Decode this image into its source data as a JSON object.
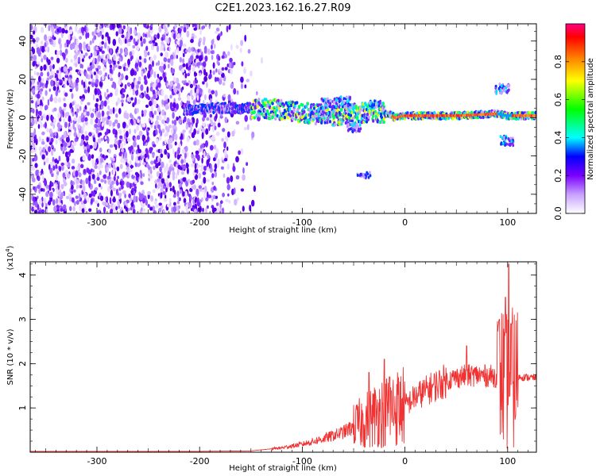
{
  "chart_data": [
    {
      "type": "heatmap",
      "title": "C2E1.2023.162.16.27.R09",
      "xlabel": "Height of straight line (km)",
      "ylabel": "Frequency (Hz)",
      "xlim": [
        -365,
        128
      ],
      "ylim": [
        -50,
        49
      ],
      "xticks": [
        -300,
        -200,
        -100,
        0,
        100
      ],
      "yticks": [
        -40,
        -20,
        0,
        20,
        40
      ],
      "colorbar": {
        "label": "Normalized spectral amplitude",
        "range": [
          0,
          1
        ],
        "ticks": [
          "0.0",
          "0.2",
          "0.4",
          "0.6",
          "0.8"
        ]
      },
      "features": {
        "noise_region_x": [
          -365,
          -150
        ],
        "central_line_points": [
          [
            -215,
            4
          ],
          [
            -180,
            5
          ],
          [
            -150,
            5
          ],
          [
            -120,
            4
          ],
          [
            -90,
            2
          ],
          [
            -70,
            1
          ],
          [
            -50,
            2
          ],
          [
            -30,
            3
          ],
          [
            -15,
            2
          ],
          [
            -10,
            0
          ],
          [
            0,
            1
          ],
          [
            50,
            1
          ],
          [
            90,
            2
          ],
          [
            100,
            1
          ],
          [
            128,
            1
          ]
        ],
        "bright_segment_x": [
          -12,
          90
        ]
      }
    },
    {
      "type": "line",
      "xlabel": "Height of straight line (km)",
      "ylabel": "SNR (10 * v/v)",
      "ylabel_multiplier": "(x10",
      "ylabel_multiplier_exp": "4",
      "ylabel_multiplier_close": ")",
      "xlim": [
        -365,
        128
      ],
      "ylim": [
        0,
        4.3
      ],
      "xticks": [
        -300,
        -200,
        -100,
        0,
        100
      ],
      "yticks": [
        1,
        2,
        3,
        4
      ],
      "color": "#f03232",
      "envelope": [
        [
          -365,
          0.02
        ],
        [
          -200,
          0.02
        ],
        [
          -150,
          0.03
        ],
        [
          -120,
          0.1
        ],
        [
          -100,
          0.18
        ],
        [
          -80,
          0.3
        ],
        [
          -60,
          0.45
        ],
        [
          -40,
          0.7
        ],
        [
          -25,
          0.9
        ],
        [
          -10,
          1.0
        ],
        [
          0,
          1.05
        ],
        [
          10,
          1.25
        ],
        [
          25,
          1.45
        ],
        [
          40,
          1.62
        ],
        [
          55,
          1.72
        ],
        [
          70,
          1.74
        ],
        [
          85,
          1.72
        ],
        [
          95,
          1.7
        ],
        [
          100,
          1.6
        ],
        [
          110,
          1.7
        ],
        [
          128,
          1.68
        ]
      ],
      "peaks": [
        [
          -20,
          2.1
        ],
        [
          -35,
          1.8
        ],
        [
          -15,
          1.7
        ],
        [
          60,
          2.4
        ],
        [
          98,
          3.5
        ],
        [
          101,
          4.25
        ],
        [
          104,
          2.9
        ],
        [
          92,
          3.0
        ]
      ]
    }
  ]
}
